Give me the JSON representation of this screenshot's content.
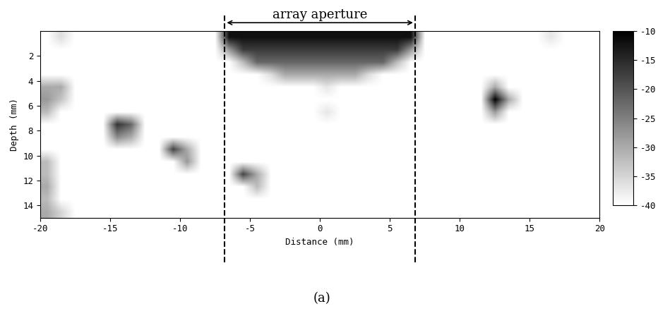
{
  "chart_data": {
    "type": "heatmap",
    "xlabel": "Distance (mm)",
    "ylabel": "Depth (mm)",
    "caption": "(a)",
    "xlim": [
      -20,
      20
    ],
    "xticks": [
      -20,
      -15,
      -10,
      -5,
      0,
      5,
      10,
      15,
      20
    ],
    "ylim": [
      15,
      0
    ],
    "yticks": [
      2,
      4,
      6,
      8,
      10,
      12,
      14
    ],
    "aperture": {
      "label": "array aperture",
      "x": [
        -6.8,
        6.8
      ]
    },
    "colorbar": {
      "range": [
        -40,
        -10
      ],
      "ticks": [
        -40,
        -35,
        -30,
        -25,
        -20,
        -15,
        -10
      ]
    },
    "cells": [
      [
        -40,
        -36,
        -40,
        -40,
        -40,
        -40,
        -40,
        -40,
        -40,
        -40,
        -40,
        -40,
        -40,
        -12,
        -12,
        -12,
        -12,
        -12,
        -12,
        -12,
        -12,
        -12,
        -12,
        -12,
        -12,
        -12,
        -12,
        -40,
        -40,
        -40,
        -40,
        -40,
        -40,
        -40,
        -40,
        -40,
        -37,
        -40,
        -40,
        -40
      ],
      [
        -40,
        -40,
        -40,
        -40,
        -40,
        -40,
        -40,
        -40,
        -40,
        -40,
        -40,
        -40,
        -40,
        -28,
        -17,
        -17,
        -17,
        -17,
        -17,
        -17,
        -17,
        -17,
        -17,
        -17,
        -17,
        -17,
        -28,
        -40,
        -40,
        -40,
        -40,
        -40,
        -40,
        -40,
        -40,
        -40,
        -40,
        -40,
        -40,
        -40
      ],
      [
        -40,
        -40,
        -40,
        -40,
        -40,
        -40,
        -40,
        -40,
        -40,
        -40,
        -40,
        -40,
        -40,
        -40,
        -32,
        -22,
        -22,
        -22,
        -22,
        -22,
        -22,
        -22,
        -22,
        -22,
        -22,
        -32,
        -40,
        -40,
        -40,
        -40,
        -40,
        -40,
        -40,
        -40,
        -40,
        -40,
        -40,
        -40,
        -40,
        -40
      ],
      [
        -40,
        -40,
        -40,
        -40,
        -40,
        -40,
        -40,
        -40,
        -40,
        -40,
        -40,
        -40,
        -40,
        -40,
        -40,
        -40,
        -36,
        -30,
        -30,
        -30,
        -30,
        -30,
        -30,
        -36,
        -40,
        -40,
        -40,
        -40,
        -40,
        -40,
        -40,
        -40,
        -40,
        -40,
        -40,
        -40,
        -40,
        -40,
        -40,
        -40
      ],
      [
        -30,
        -30,
        -40,
        -40,
        -40,
        -40,
        -40,
        -40,
        -40,
        -40,
        -40,
        -40,
        -40,
        -40,
        -40,
        -40,
        -40,
        -40,
        -40,
        -40,
        -37,
        -40,
        -40,
        -40,
        -40,
        -40,
        -40,
        -40,
        -40,
        -40,
        -40,
        -40,
        -30,
        -40,
        -40,
        -40,
        -40,
        -40,
        -40,
        -40
      ],
      [
        -28,
        -33,
        -40,
        -40,
        -40,
        -40,
        -40,
        -40,
        -40,
        -40,
        -40,
        -40,
        -40,
        -40,
        -40,
        -40,
        -40,
        -40,
        -40,
        -40,
        -40,
        -40,
        -40,
        -40,
        -40,
        -40,
        -40,
        -40,
        -40,
        -40,
        -40,
        -40,
        -10,
        -30,
        -40,
        -40,
        -40,
        -40,
        -40,
        -40
      ],
      [
        -32,
        -40,
        -40,
        -40,
        -40,
        -40,
        -40,
        -40,
        -40,
        -40,
        -40,
        -40,
        -40,
        -40,
        -40,
        -40,
        -40,
        -40,
        -40,
        -40,
        -37,
        -40,
        -40,
        -40,
        -40,
        -40,
        -40,
        -40,
        -40,
        -40,
        -40,
        -40,
        -28,
        -40,
        -40,
        -40,
        -40,
        -40,
        -40,
        -40
      ],
      [
        -40,
        -40,
        -40,
        -40,
        -40,
        -16,
        -22,
        -40,
        -40,
        -40,
        -40,
        -40,
        -40,
        -40,
        -40,
        -40,
        -40,
        -40,
        -40,
        -40,
        -40,
        -40,
        -40,
        -40,
        -40,
        -40,
        -40,
        -40,
        -40,
        -40,
        -40,
        -40,
        -40,
        -40,
        -40,
        -40,
        -40,
        -40,
        -40,
        -40
      ],
      [
        -40,
        -40,
        -40,
        -40,
        -40,
        -26,
        -30,
        -40,
        -40,
        -40,
        -40,
        -40,
        -40,
        -40,
        -40,
        -40,
        -40,
        -40,
        -40,
        -40,
        -40,
        -40,
        -40,
        -40,
        -40,
        -40,
        -40,
        -40,
        -40,
        -40,
        -40,
        -40,
        -40,
        -40,
        -40,
        -40,
        -40,
        -40,
        -40,
        -40
      ],
      [
        -40,
        -40,
        -40,
        -40,
        -40,
        -40,
        -40,
        -40,
        -40,
        -18,
        -30,
        -40,
        -40,
        -40,
        -40,
        -40,
        -40,
        -40,
        -40,
        -40,
        -40,
        -40,
        -40,
        -40,
        -40,
        -40,
        -40,
        -40,
        -40,
        -40,
        -40,
        -40,
        -40,
        -40,
        -40,
        -40,
        -40,
        -40,
        -40,
        -40
      ],
      [
        -32,
        -40,
        -40,
        -40,
        -40,
        -40,
        -40,
        -40,
        -40,
        -40,
        -28,
        -40,
        -40,
        -40,
        -40,
        -40,
        -40,
        -40,
        -40,
        -40,
        -40,
        -40,
        -40,
        -40,
        -40,
        -40,
        -40,
        -40,
        -40,
        -40,
        -40,
        -40,
        -40,
        -40,
        -40,
        -40,
        -40,
        -40,
        -40,
        -40
      ],
      [
        -32,
        -40,
        -40,
        -40,
        -40,
        -40,
        -40,
        -40,
        -40,
        -40,
        -40,
        -40,
        -40,
        -40,
        -18,
        -30,
        -40,
        -40,
        -40,
        -40,
        -40,
        -40,
        -40,
        -40,
        -40,
        -40,
        -40,
        -40,
        -40,
        -40,
        -40,
        -40,
        -40,
        -40,
        -40,
        -40,
        -40,
        -40,
        -40,
        -40
      ],
      [
        -30,
        -40,
        -40,
        -40,
        -40,
        -40,
        -40,
        -40,
        -40,
        -40,
        -40,
        -40,
        -40,
        -40,
        -40,
        -32,
        -40,
        -40,
        -40,
        -40,
        -40,
        -40,
        -40,
        -40,
        -40,
        -40,
        -40,
        -40,
        -40,
        -40,
        -40,
        -40,
        -40,
        -40,
        -40,
        -40,
        -40,
        -40,
        -40,
        -40
      ],
      [
        -32,
        -40,
        -40,
        -40,
        -40,
        -40,
        -40,
        -40,
        -40,
        -40,
        -40,
        -40,
        -40,
        -40,
        -40,
        -40,
        -40,
        -40,
        -40,
        -40,
        -40,
        -40,
        -40,
        -40,
        -40,
        -40,
        -40,
        -40,
        -40,
        -40,
        -40,
        -40,
        -40,
        -40,
        -40,
        -40,
        -40,
        -40,
        -40,
        -40
      ],
      [
        -30,
        -35,
        -40,
        -40,
        -40,
        -40,
        -40,
        -40,
        -40,
        -40,
        -40,
        -40,
        -40,
        -40,
        -40,
        -40,
        -40,
        -40,
        -40,
        -40,
        -40,
        -40,
        -40,
        -40,
        -40,
        -40,
        -40,
        -40,
        -40,
        -40,
        -40,
        -40,
        -40,
        -40,
        -40,
        -40,
        -40,
        -40,
        -40,
        -40
      ]
    ]
  }
}
